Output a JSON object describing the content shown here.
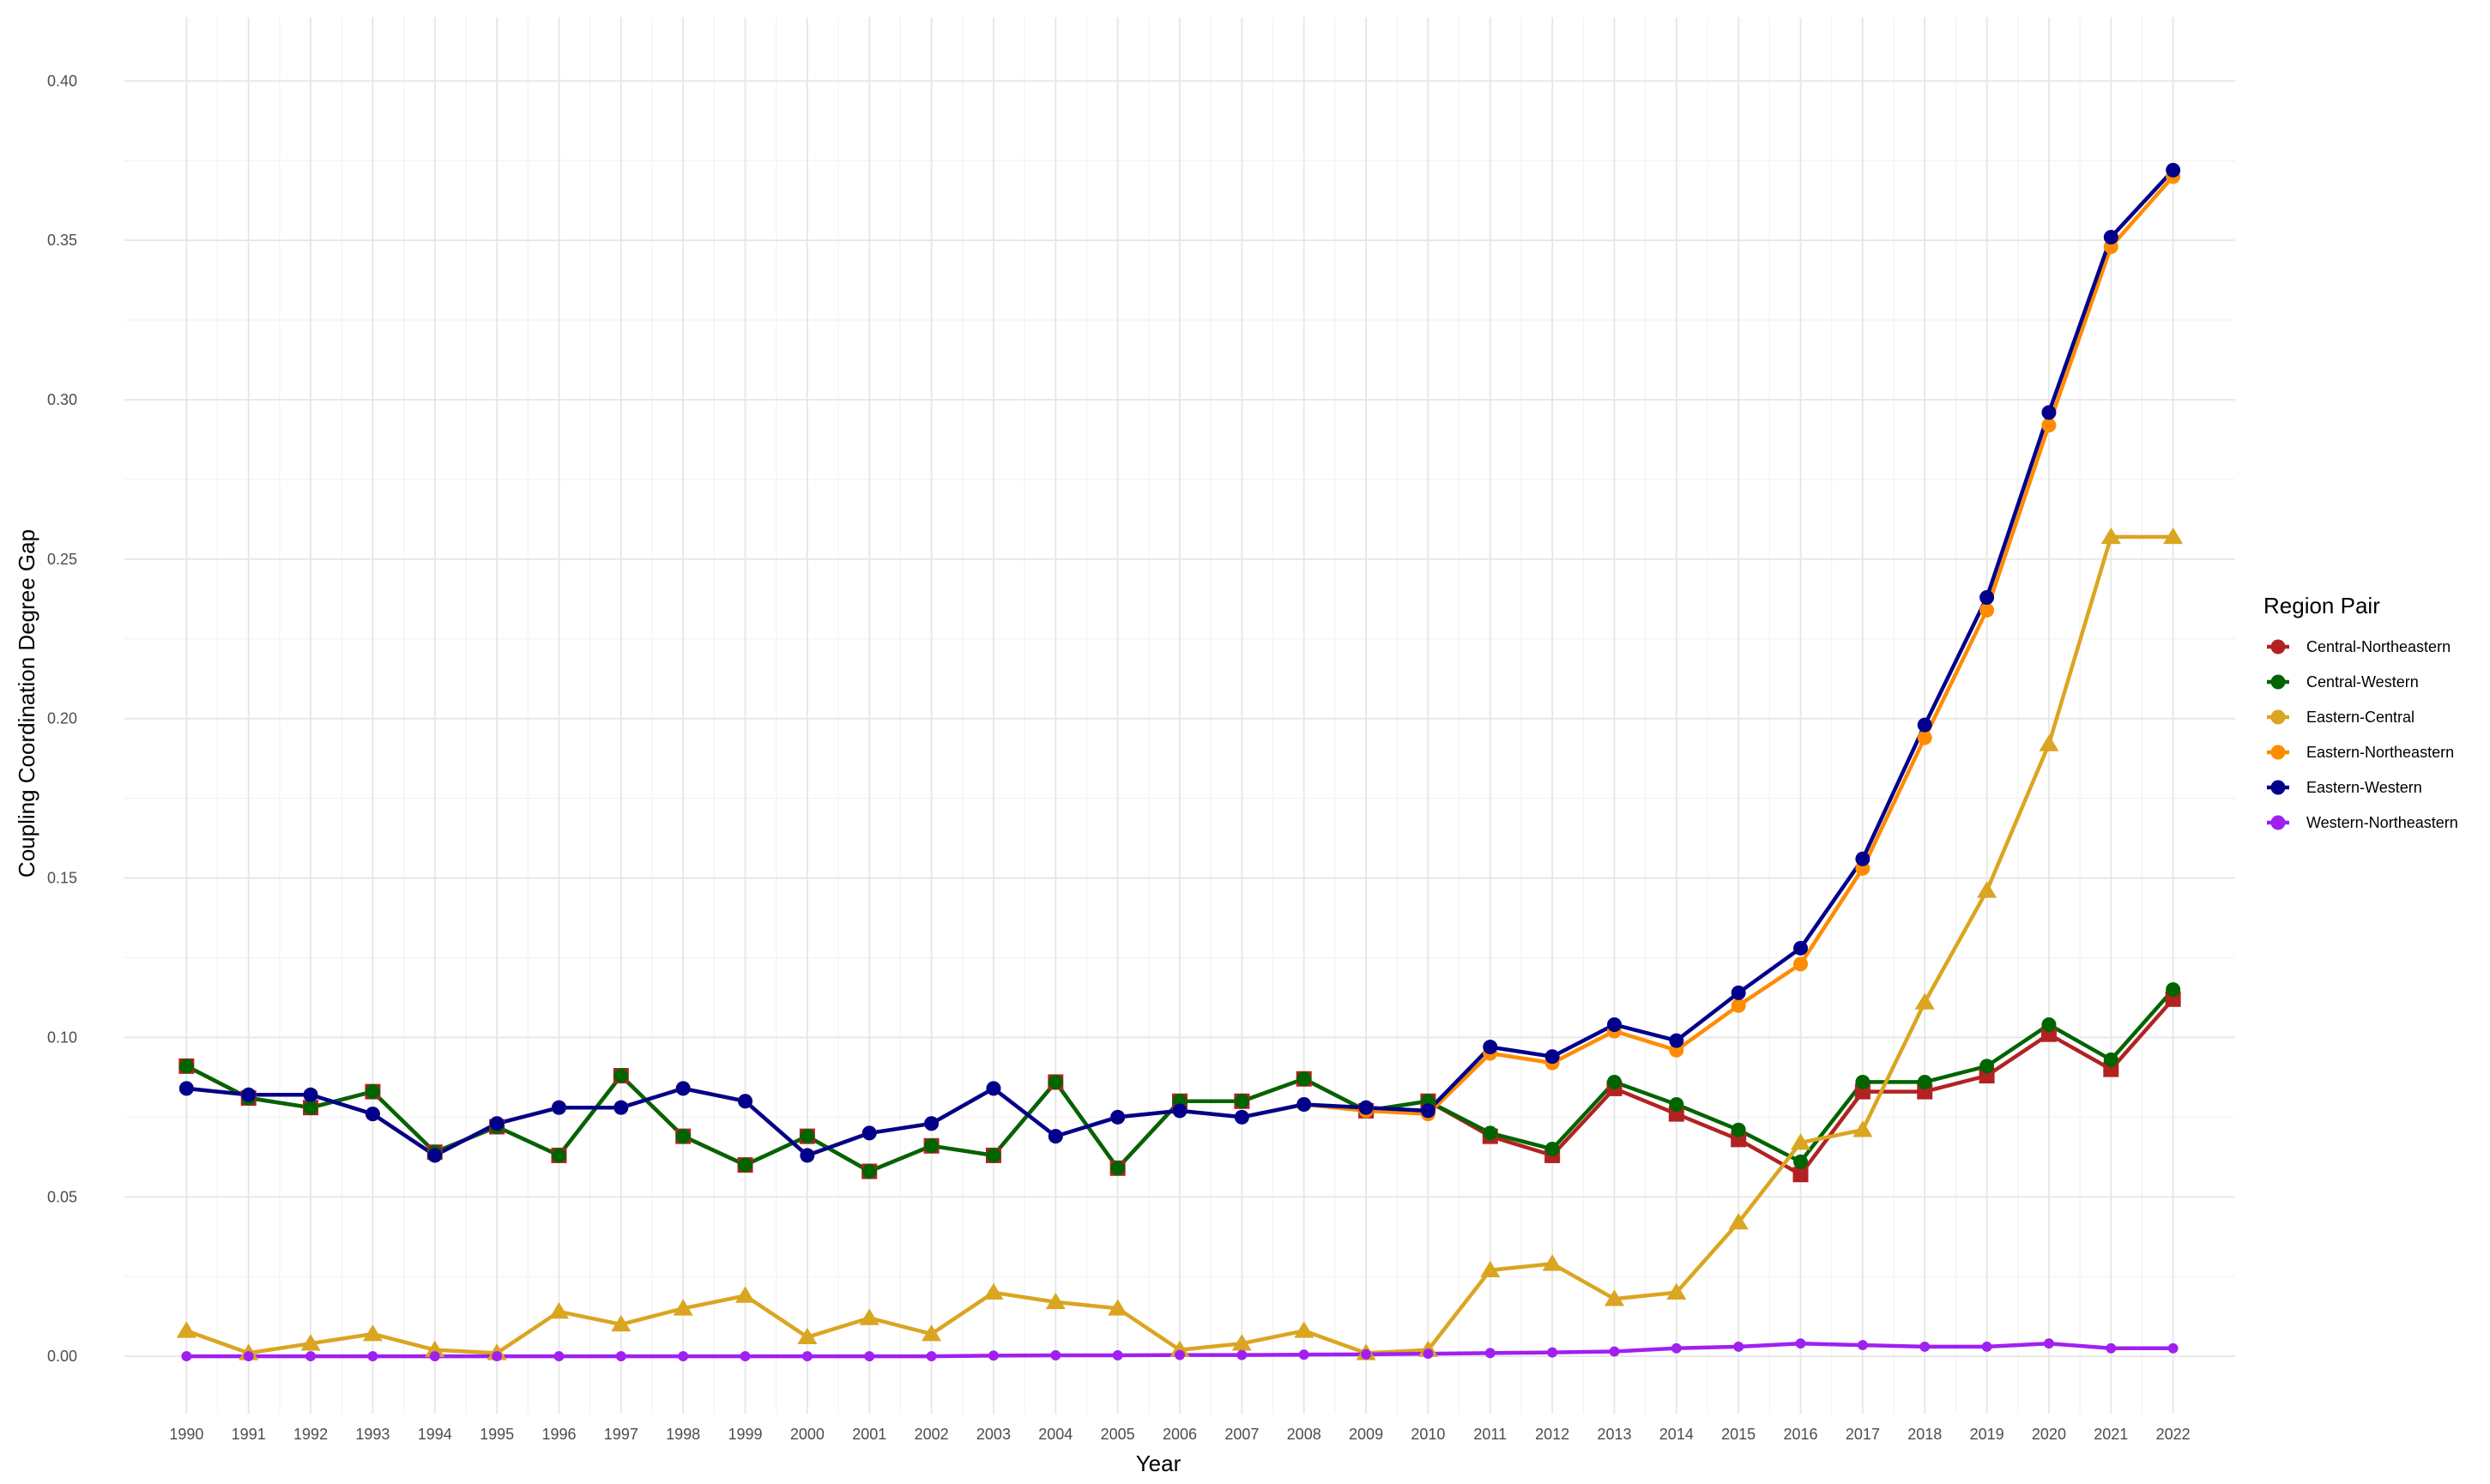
{
  "chart_data": {
    "type": "line",
    "title": "",
    "xlabel": "Year",
    "ylabel": "Coupling Coordination Degree Gap",
    "x": [
      1990,
      1991,
      1992,
      1993,
      1994,
      1995,
      1996,
      1997,
      1998,
      1999,
      2000,
      2001,
      2002,
      2003,
      2004,
      2005,
      2006,
      2007,
      2008,
      2009,
      2010,
      2011,
      2012,
      2013,
      2014,
      2015,
      2016,
      2017,
      2018,
      2019,
      2020,
      2021,
      2022
    ],
    "x_tick_labels": [
      "1990",
      "1991",
      "1992",
      "1993",
      "1994",
      "1995",
      "1996",
      "1997",
      "1998",
      "1999",
      "2000",
      "2001",
      "2002",
      "2003",
      "2004",
      "2005",
      "2006",
      "2007",
      "2008",
      "2009",
      "2010",
      "2011",
      "2012",
      "2013",
      "2014",
      "2015",
      "2016",
      "2017",
      "2018",
      "2019",
      "2020",
      "2021",
      "2022"
    ],
    "ylim": [
      -0.018,
      0.42
    ],
    "y_ticks": [
      0.0,
      0.05,
      0.1,
      0.15,
      0.2,
      0.25,
      0.3,
      0.35,
      0.4
    ],
    "y_tick_labels": [
      "0.00",
      "0.05",
      "0.10",
      "0.15",
      "0.20",
      "0.25",
      "0.30",
      "0.35",
      "0.40"
    ],
    "grid": true,
    "legend": {
      "title": "Region Pair",
      "position": "right"
    },
    "series": [
      {
        "name": "Central-Northeastern",
        "color": "#b22222",
        "marker": "square",
        "values": [
          0.091,
          0.081,
          0.078,
          0.083,
          0.064,
          0.072,
          0.063,
          0.088,
          0.069,
          0.06,
          0.069,
          0.058,
          0.066,
          0.063,
          0.086,
          0.059,
          0.08,
          0.08,
          0.087,
          0.077,
          0.08,
          0.069,
          0.063,
          0.084,
          0.076,
          0.068,
          0.057,
          0.083,
          0.083,
          0.088,
          0.101,
          0.09,
          0.112
        ]
      },
      {
        "name": "Central-Western",
        "color": "#006400",
        "marker": "circle",
        "values": [
          0.091,
          0.081,
          0.078,
          0.083,
          0.064,
          0.072,
          0.063,
          0.088,
          0.069,
          0.06,
          0.069,
          0.058,
          0.066,
          0.063,
          0.086,
          0.059,
          0.08,
          0.08,
          0.087,
          0.077,
          0.08,
          0.07,
          0.065,
          0.086,
          0.079,
          0.071,
          0.061,
          0.086,
          0.086,
          0.091,
          0.104,
          0.093,
          0.115
        ]
      },
      {
        "name": "Eastern-Central",
        "color": "#daa520",
        "marker": "triangle",
        "values": [
          0.008,
          0.001,
          0.004,
          0.007,
          0.002,
          0.001,
          0.014,
          0.01,
          0.015,
          0.019,
          0.006,
          0.012,
          0.007,
          0.02,
          0.017,
          0.015,
          0.002,
          0.004,
          0.008,
          0.001,
          0.002,
          0.027,
          0.029,
          0.018,
          0.02,
          0.042,
          0.067,
          0.071,
          0.111,
          0.146,
          0.192,
          0.257,
          0.257
        ]
      },
      {
        "name": "Eastern-Northeastern",
        "color": "#ff8c00",
        "marker": "circle",
        "values": [
          0.084,
          0.082,
          0.082,
          0.076,
          0.063,
          0.073,
          0.078,
          0.078,
          0.084,
          0.08,
          0.063,
          0.07,
          0.073,
          0.084,
          0.069,
          0.075,
          0.077,
          0.075,
          0.079,
          0.077,
          0.076,
          0.095,
          0.092,
          0.102,
          0.096,
          0.11,
          0.123,
          0.153,
          0.194,
          0.234,
          0.292,
          0.348,
          0.37
        ]
      },
      {
        "name": "Eastern-Western",
        "color": "#00008b",
        "marker": "circle",
        "values": [
          0.084,
          0.082,
          0.082,
          0.076,
          0.063,
          0.073,
          0.078,
          0.078,
          0.084,
          0.08,
          0.063,
          0.07,
          0.073,
          0.084,
          0.069,
          0.075,
          0.077,
          0.075,
          0.079,
          0.078,
          0.077,
          0.097,
          0.094,
          0.104,
          0.099,
          0.114,
          0.128,
          0.156,
          0.198,
          0.238,
          0.296,
          0.351,
          0.372
        ]
      },
      {
        "name": "Western-Northeastern",
        "color": "#a020f0",
        "marker": "circle",
        "values": [
          0.0,
          0.0,
          0.0,
          0.0,
          0.0,
          0.0,
          0.0,
          0.0,
          0.0,
          0.0,
          0.0,
          0.0,
          0.0,
          0.0002,
          0.0003,
          0.0003,
          0.0004,
          0.0004,
          0.0005,
          0.0006,
          0.0008,
          0.001,
          0.0012,
          0.0015,
          0.0025,
          0.003,
          0.004,
          0.0035,
          0.003,
          0.003,
          0.004,
          0.0025,
          0.0025
        ]
      }
    ]
  }
}
